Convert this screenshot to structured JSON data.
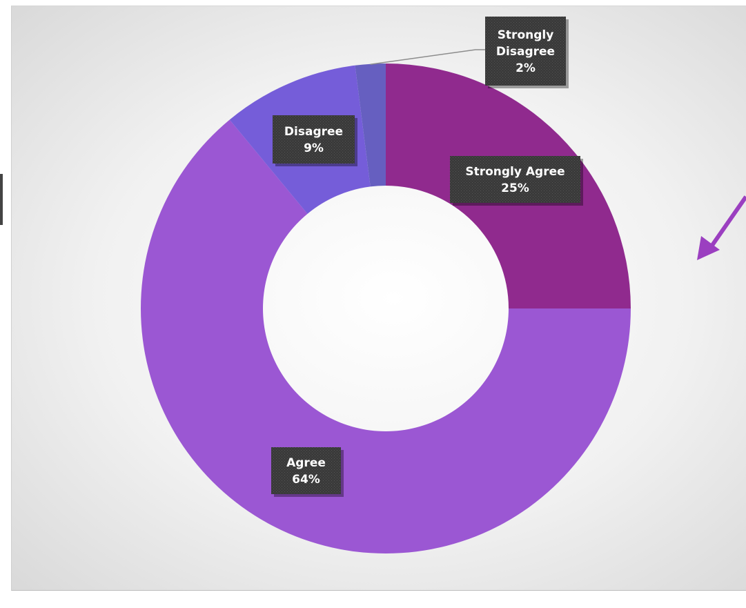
{
  "chart_data": {
    "type": "pie",
    "style": "doughnut",
    "categories": [
      "Strongly Agree",
      "Agree",
      "Disagree",
      "Strongly Disagree"
    ],
    "values": [
      25,
      64,
      9,
      2
    ],
    "value_suffix": "%",
    "title": "",
    "legend": "none",
    "colors": [
      "#902a8e",
      "#9b57d3",
      "#755dd9",
      "#665fc0"
    ],
    "data_labels": [
      {
        "category": "Strongly Agree",
        "lines": [
          "Strongly Agree",
          "25%"
        ]
      },
      {
        "category": "Agree",
        "lines": [
          "Agree",
          "64%"
        ]
      },
      {
        "category": "Disagree",
        "lines": [
          "Disagree",
          "9%"
        ]
      },
      {
        "category": "Strongly Disagree",
        "lines": [
          "Strongly",
          "Disagree",
          "2%"
        ]
      }
    ]
  },
  "annotations": {
    "arrow_icon": "arrow-down-left-icon",
    "arrow_color": "#9b3fc0"
  }
}
